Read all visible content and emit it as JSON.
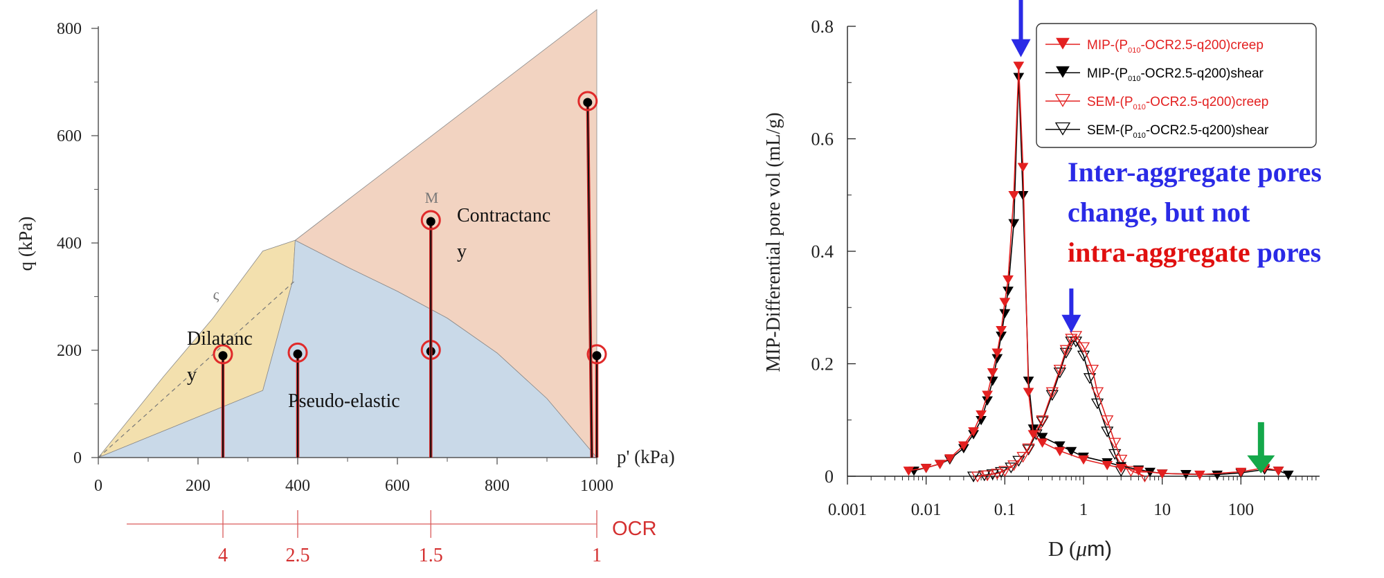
{
  "chart_data": [
    {
      "type": "line",
      "xlabel": "p' (kPa)",
      "ylabel": "q (kPa)",
      "xlim": [
        0,
        1000
      ],
      "ylim": [
        0,
        800
      ],
      "x_ticks": [
        "0",
        "200",
        "400",
        "600",
        "800",
        "1000"
      ],
      "y_ticks": [
        "0",
        "200",
        "400",
        "600",
        "800"
      ],
      "regions": [
        {
          "label_lines": [
            "Dilatanc",
            "y"
          ],
          "color": "#f3e0ae",
          "polygon": [
            [
              0,
              0
            ],
            [
              130,
              150
            ],
            [
              230,
              260
            ],
            [
              330,
              385
            ],
            [
              395,
              405
            ],
            [
              390,
              330
            ],
            [
              330,
              125
            ],
            [
              0,
              0
            ]
          ]
        },
        {
          "label_lines": [
            "Pseudo-elastic"
          ],
          "color": "#c9d9e8",
          "polygon": [
            [
              0,
              0
            ],
            [
              330,
              125
            ],
            [
              390,
              330
            ],
            [
              395,
              405
            ],
            [
              500,
              355
            ],
            [
              600,
              310
            ],
            [
              700,
              260
            ],
            [
              800,
              195
            ],
            [
              900,
              110
            ],
            [
              1000,
              0
            ],
            [
              0,
              0
            ]
          ]
        },
        {
          "label_lines": [
            "Contractanc",
            "y"
          ],
          "color": "#f2d3c1",
          "polygon": [
            [
              395,
              405
            ],
            [
              500,
              480
            ],
            [
              1000,
              835
            ],
            [
              1000,
              0
            ],
            [
              900,
              110
            ],
            [
              800,
              195
            ],
            [
              700,
              260
            ],
            [
              600,
              310
            ],
            [
              500,
              355
            ],
            [
              395,
              405
            ]
          ]
        }
      ],
      "line_labels": {
        "csl": "M",
        "boundary": "ς"
      },
      "stress_paths": [
        {
          "p": 250,
          "q_end": 190,
          "ocr": "4"
        },
        {
          "p": 400,
          "q_end": 193,
          "ocr": "2.5"
        },
        {
          "p": 667,
          "q_end": 198,
          "ocr": "1.5"
        },
        {
          "p": 667,
          "q_end": 440,
          "ocr": "1.5"
        },
        {
          "p": 1000,
          "q_end": 190,
          "ocr": "1"
        },
        {
          "p": 990,
          "q_end": 662,
          "ocr": "1"
        }
      ],
      "ocr_axis": {
        "label": "OCR",
        "ticks": [
          {
            "p": 250,
            "label": "4"
          },
          {
            "p": 400,
            "label": "2.5"
          },
          {
            "p": 667,
            "label": "1.5"
          },
          {
            "p": 1000,
            "label": "1"
          }
        ]
      }
    },
    {
      "type": "line",
      "xlabel": "D (μm)",
      "ylabel": "MIP-Differential pore vol (mL/g)",
      "xscale": "log",
      "xlim": [
        0.001,
        1000
      ],
      "ylim": [
        0,
        0.8
      ],
      "x_ticks": [
        "0.001",
        "0.01",
        "0.1",
        "1",
        "10",
        "100"
      ],
      "y_ticks": [
        "0",
        "0.2",
        "0.4",
        "0.6",
        "0.8"
      ],
      "legend_position": "top-right",
      "legend": [
        {
          "pre": "MIP-(P",
          "sub": "010",
          "post": "-OCR2.5-q200)creep",
          "color": "#e32020",
          "marker": "triangle-down-filled"
        },
        {
          "pre": "MIP-(P",
          "sub": "010",
          "post": "-OCR2.5-q200)shear",
          "color": "#000000",
          "marker": "triangle-down-filled"
        },
        {
          "pre": "SEM-(P",
          "sub": "010",
          "post": "-OCR2.5-q200)creep",
          "color": "#e32020",
          "marker": "triangle-down-open"
        },
        {
          "pre": "SEM-(P",
          "sub": "010",
          "post": "-OCR2.5-q200)shear",
          "color": "#000000",
          "marker": "triangle-down-open"
        }
      ],
      "series": [
        {
          "name": "MIP-(P010-OCR2.5-q200)creep",
          "color": "#e32020",
          "fill": true,
          "x": [
            0.006,
            0.01,
            0.015,
            0.02,
            0.03,
            0.04,
            0.05,
            0.06,
            0.07,
            0.08,
            0.09,
            0.1,
            0.11,
            0.13,
            0.15,
            0.17,
            0.2,
            0.23,
            0.3,
            0.5,
            1,
            2,
            3,
            5,
            10,
            30,
            100,
            200,
            300
          ],
          "y": [
            0.01,
            0.015,
            0.022,
            0.032,
            0.055,
            0.08,
            0.11,
            0.145,
            0.185,
            0.22,
            0.26,
            0.31,
            0.35,
            0.5,
            0.73,
            0.55,
            0.15,
            0.075,
            0.06,
            0.045,
            0.03,
            0.02,
            0.015,
            0.01,
            0.005,
            0.003,
            0.008,
            0.015,
            0.01
          ]
        },
        {
          "name": "MIP-(P010-OCR2.5-q200)shear",
          "color": "#000000",
          "fill": true,
          "x": [
            0.007,
            0.01,
            0.015,
            0.02,
            0.03,
            0.04,
            0.05,
            0.06,
            0.07,
            0.08,
            0.09,
            0.1,
            0.11,
            0.13,
            0.15,
            0.17,
            0.2,
            0.23,
            0.3,
            0.5,
            0.7,
            1,
            2,
            3,
            5,
            7,
            10,
            20,
            50,
            100,
            200,
            300,
            400
          ],
          "y": [
            0.01,
            0.015,
            0.022,
            0.03,
            0.05,
            0.075,
            0.1,
            0.135,
            0.17,
            0.21,
            0.25,
            0.29,
            0.33,
            0.45,
            0.71,
            0.5,
            0.17,
            0.085,
            0.07,
            0.055,
            0.045,
            0.035,
            0.025,
            0.018,
            0.012,
            0.008,
            0.005,
            0.004,
            0.003,
            0.006,
            0.012,
            0.01,
            0.003
          ]
        },
        {
          "name": "SEM-(P010-OCR2.5-q200)creep",
          "color": "#e32020",
          "fill": false,
          "x": [
            0.045,
            0.06,
            0.08,
            0.1,
            0.13,
            0.17,
            0.2,
            0.25,
            0.3,
            0.4,
            0.5,
            0.6,
            0.7,
            0.8,
            1.0,
            1.3,
            1.5,
            2,
            2.5,
            3,
            4,
            6
          ],
          "y": [
            0.0,
            0.002,
            0.005,
            0.01,
            0.02,
            0.035,
            0.05,
            0.08,
            0.1,
            0.15,
            0.19,
            0.225,
            0.245,
            0.25,
            0.23,
            0.19,
            0.15,
            0.1,
            0.06,
            0.03,
            0.01,
            0.0
          ]
        },
        {
          "name": "SEM-(P010-OCR2.5-q200)shear",
          "color": "#000000",
          "fill": false,
          "x": [
            0.04,
            0.055,
            0.07,
            0.09,
            0.12,
            0.15,
            0.2,
            0.25,
            0.3,
            0.4,
            0.5,
            0.6,
            0.7,
            0.8,
            1.0,
            1.2,
            1.5,
            2,
            2.5,
            3
          ],
          "y": [
            0.0,
            0.002,
            0.004,
            0.008,
            0.016,
            0.028,
            0.048,
            0.075,
            0.098,
            0.145,
            0.185,
            0.22,
            0.24,
            0.24,
            0.215,
            0.175,
            0.13,
            0.08,
            0.04,
            0.01
          ]
        }
      ],
      "annotations": [
        {
          "lines": [
            [
              {
                "text": "Inter-aggregate",
                "color": "#2a2ae6"
              },
              {
                "text": " pores",
                "color": "#2a2ae6"
              }
            ],
            [
              {
                "text": "change, but not",
                "color": "#2a2ae6"
              }
            ],
            [
              {
                "text": "intra-aggregate",
                "color": "#e01010"
              },
              {
                "text": " pores",
                "color": "#2a2ae6"
              }
            ]
          ]
        }
      ],
      "arrows": [
        {
          "x": 0.16,
          "y": 0.75,
          "color": "#2a2ae6"
        },
        {
          "x": 0.7,
          "y": 0.26,
          "color": "#2a2ae6"
        },
        {
          "x": 180,
          "y": 0.01,
          "color": "#14a84a"
        }
      ]
    }
  ]
}
